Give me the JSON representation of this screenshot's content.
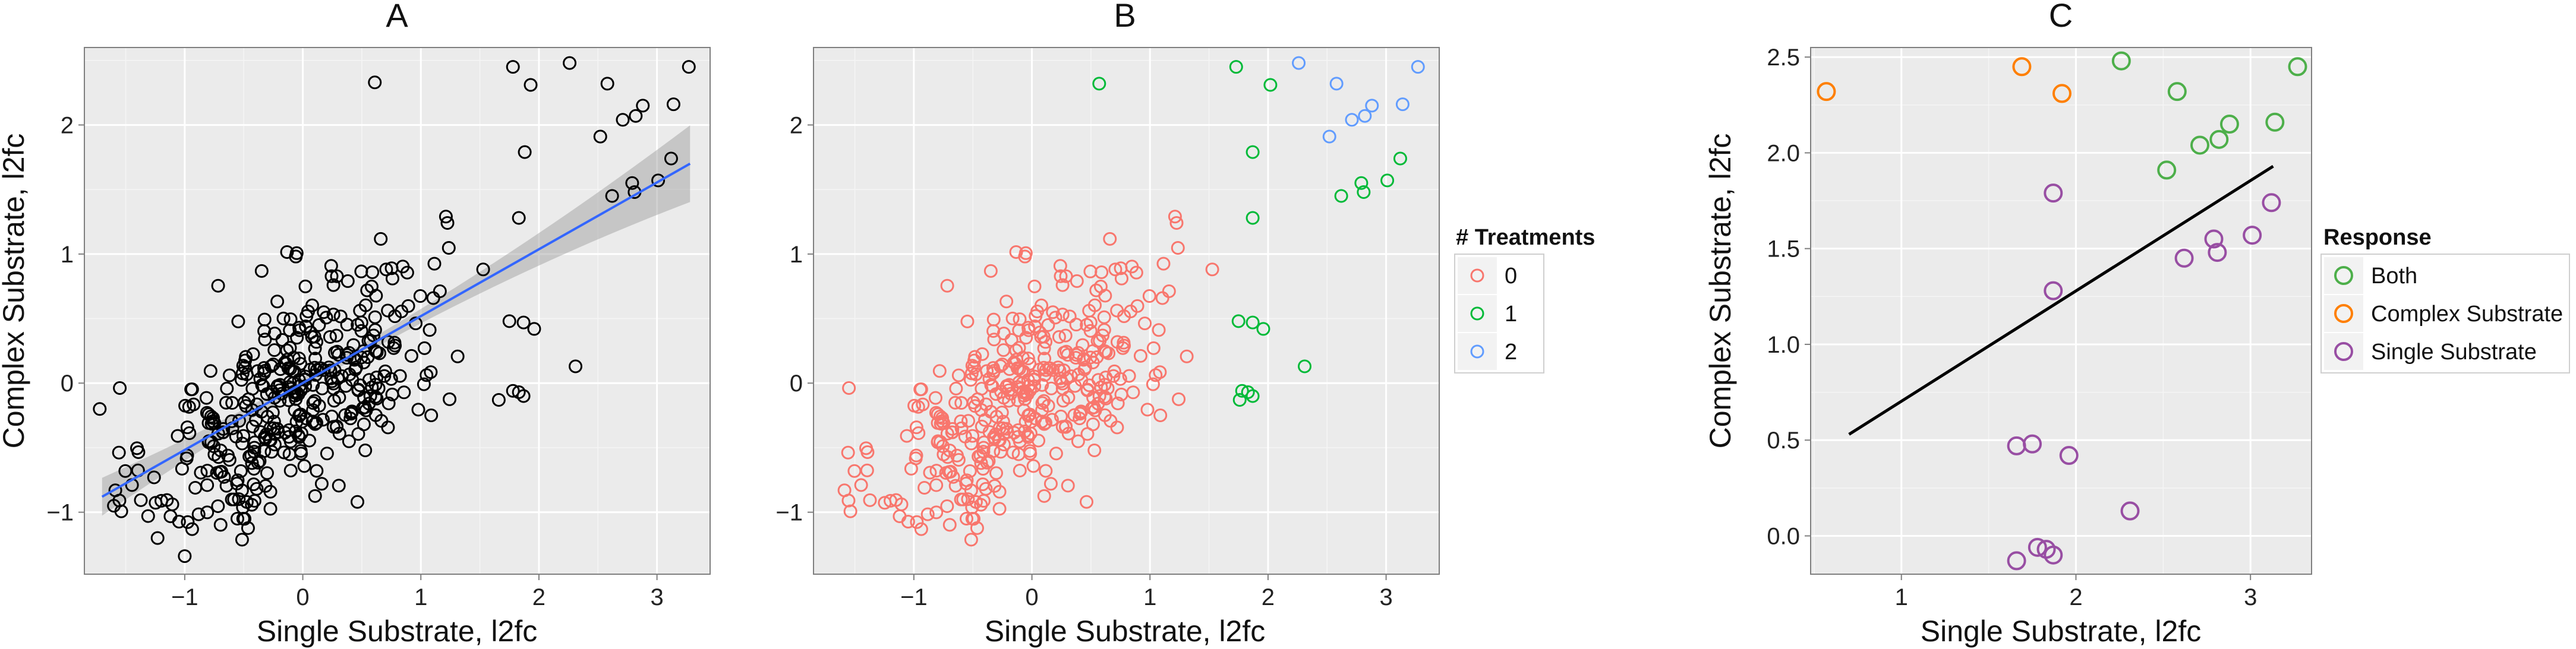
{
  "chart_data": [
    {
      "type": "scatter",
      "title": "A",
      "xlabel": "Single Substrate, l2fc",
      "ylabel": "Complex Substrate, l2fc",
      "xlim": [
        -1.85,
        3.45
      ],
      "ylim": [
        -1.48,
        2.6
      ],
      "xticks": [
        "−1",
        "0",
        "1",
        "2",
        "3"
      ],
      "yticks": [
        "−1",
        "0",
        "1",
        "2"
      ],
      "grid": true,
      "point_color": "#000000",
      "fit_line": {
        "x": [
          -1.7,
          3.28
        ],
        "y": [
          -0.88,
          1.7
        ],
        "color": "#3366ff",
        "band_color": "#999999"
      },
      "n_points": 420,
      "points": [
        [
          0.61,
          2.33
        ],
        [
          1.78,
          2.45
        ],
        [
          1.93,
          2.31
        ],
        [
          2.26,
          2.48
        ],
        [
          2.58,
          2.32
        ],
        [
          3.27,
          2.45
        ],
        [
          2.88,
          2.15
        ],
        [
          2.82,
          2.07
        ],
        [
          3.14,
          2.16
        ],
        [
          2.71,
          2.04
        ],
        [
          2.52,
          1.91
        ],
        [
          1.88,
          1.79
        ],
        [
          3.12,
          1.74
        ],
        [
          3.01,
          1.57
        ],
        [
          2.79,
          1.55
        ],
        [
          2.81,
          1.48
        ],
        [
          2.62,
          1.45
        ],
        [
          1.83,
          1.28
        ],
        [
          1.87,
          0.47
        ],
        [
          1.75,
          0.48
        ],
        [
          1.96,
          0.42
        ],
        [
          2.31,
          0.13
        ],
        [
          1.78,
          -0.06
        ],
        [
          1.83,
          -0.07
        ],
        [
          1.87,
          -0.1
        ],
        [
          1.66,
          -0.13
        ],
        [
          -1.72,
          -0.2
        ],
        [
          -1.31,
          -1.03
        ],
        [
          -1.23,
          -1.2
        ],
        [
          -1.0,
          -1.34
        ],
        [
          -1.6,
          -0.95
        ],
        [
          -1.26,
          -0.73
        ]
      ]
    },
    {
      "type": "scatter",
      "title": "B",
      "xlabel": "Single Substrate, l2fc",
      "ylabel": "",
      "xlim": [
        -1.85,
        3.45
      ],
      "ylim": [
        -1.48,
        2.6
      ],
      "xticks": [
        "−1",
        "0",
        "1",
        "2",
        "3"
      ],
      "yticks": [
        "−1",
        "0",
        "1",
        "2"
      ],
      "grid": true,
      "legend": {
        "title": "# Treatments",
        "entries": [
          {
            "label": "0",
            "color": "#f8766d"
          },
          {
            "label": "1",
            "color": "#00ba38"
          },
          {
            "label": "2",
            "color": "#619cff"
          }
        ]
      },
      "series": [
        {
          "name": "0",
          "color": "#f8766d",
          "n_points": 398
        },
        {
          "name": "1",
          "color": "#00ba38",
          "points": [
            [
              0.57,
              2.32
            ],
            [
              1.73,
              2.45
            ],
            [
              2.02,
              2.31
            ],
            [
              1.87,
              1.79
            ],
            [
              1.87,
              1.28
            ],
            [
              3.12,
              1.74
            ],
            [
              3.01,
              1.57
            ],
            [
              2.79,
              1.55
            ],
            [
              2.81,
              1.48
            ],
            [
              2.62,
              1.45
            ],
            [
              1.75,
              0.48
            ],
            [
              1.87,
              0.47
            ],
            [
              1.96,
              0.42
            ],
            [
              2.31,
              0.13
            ],
            [
              1.78,
              -0.06
            ],
            [
              1.83,
              -0.07
            ],
            [
              1.87,
              -0.1
            ],
            [
              1.76,
              -0.13
            ]
          ]
        },
        {
          "name": "2",
          "color": "#619cff",
          "points": [
            [
              2.26,
              2.48
            ],
            [
              2.58,
              2.32
            ],
            [
              3.27,
              2.45
            ],
            [
              2.88,
              2.15
            ],
            [
              2.82,
              2.07
            ],
            [
              3.14,
              2.16
            ],
            [
              2.71,
              2.04
            ],
            [
              2.52,
              1.91
            ]
          ]
        }
      ]
    },
    {
      "type": "scatter",
      "title": "C",
      "xlabel": "Single Substrate, l2fc",
      "ylabel": "Complex Substrate, l2fc",
      "xlim": [
        0.48,
        3.35
      ],
      "ylim": [
        -0.2,
        2.55
      ],
      "xticks": [
        "1",
        "2",
        "3"
      ],
      "yticks": [
        "0.0",
        "0.5",
        "1.0",
        "1.5",
        "2.0",
        "2.5"
      ],
      "grid": true,
      "fit_line": {
        "x": [
          0.7,
          3.13
        ],
        "y": [
          0.53,
          1.93
        ],
        "color": "#000000"
      },
      "legend": {
        "title": "Response",
        "entries": [
          {
            "label": "Both",
            "color": "#4daf4a"
          },
          {
            "label": "Complex Substrate",
            "color": "#ff7f00"
          },
          {
            "label": "Single Substrate",
            "color": "#984ea3"
          }
        ]
      },
      "series": [
        {
          "name": "Both",
          "color": "#4daf4a",
          "points": [
            [
              2.26,
              2.48
            ],
            [
              2.58,
              2.32
            ],
            [
              3.27,
              2.45
            ],
            [
              2.88,
              2.15
            ],
            [
              2.82,
              2.07
            ],
            [
              3.14,
              2.16
            ],
            [
              2.71,
              2.04
            ],
            [
              2.52,
              1.91
            ]
          ]
        },
        {
          "name": "Complex Substrate",
          "color": "#ff7f00",
          "points": [
            [
              0.57,
              2.32
            ],
            [
              1.69,
              2.45
            ],
            [
              1.92,
              2.31
            ]
          ]
        },
        {
          "name": "Single Substrate",
          "color": "#984ea3",
          "points": [
            [
              1.87,
              1.79
            ],
            [
              1.87,
              1.28
            ],
            [
              3.12,
              1.74
            ],
            [
              3.01,
              1.57
            ],
            [
              2.79,
              1.55
            ],
            [
              2.81,
              1.48
            ],
            [
              2.62,
              1.45
            ],
            [
              1.75,
              0.48
            ],
            [
              1.66,
              0.47
            ],
            [
              1.96,
              0.42
            ],
            [
              2.31,
              0.13
            ],
            [
              1.78,
              -0.06
            ],
            [
              1.83,
              -0.07
            ],
            [
              1.87,
              -0.1
            ],
            [
              1.66,
              -0.13
            ]
          ]
        }
      ]
    }
  ]
}
